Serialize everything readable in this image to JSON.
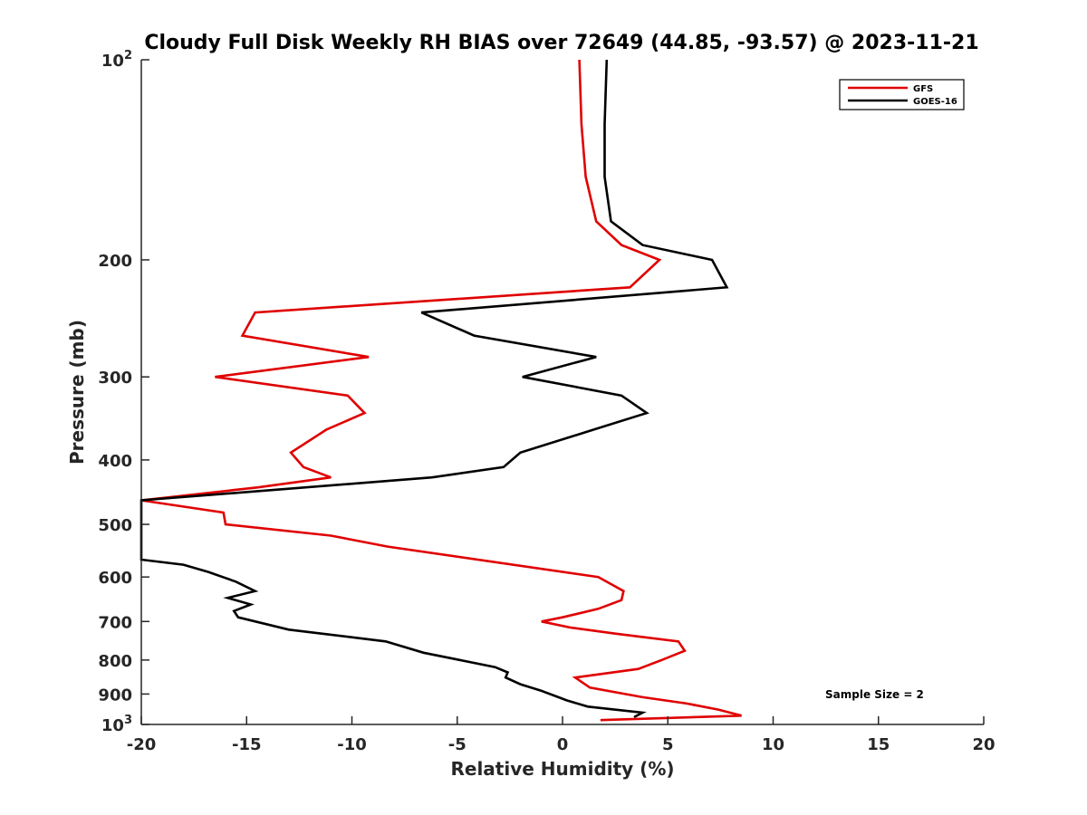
{
  "chart_data": {
    "type": "line",
    "title": "Cloudy Full Disk Weekly RH BIAS over 72649 (44.85, -93.57) @ 2023-11-21",
    "xlabel": "Relative Humidity (%)",
    "ylabel": "Pressure (mb)",
    "xlim": [
      -20,
      20
    ],
    "ylim": [
      100,
      1000
    ],
    "y_scale": "log",
    "y_reversed": true,
    "grid": false,
    "legend_position": "top-right",
    "x_ticks": [
      -20,
      -15,
      -10,
      -5,
      0,
      5,
      10,
      15,
      20
    ],
    "x_tick_labels": [
      "-20",
      "-15",
      "-10",
      "-5",
      "0",
      "5",
      "10",
      "15",
      "20"
    ],
    "y_ticks": [
      100,
      200,
      300,
      400,
      500,
      600,
      700,
      800,
      900,
      1000
    ],
    "y_tick_labels": [
      {
        "base": "10",
        "exp": "2"
      },
      {
        "base": "200",
        "exp": ""
      },
      {
        "base": "300",
        "exp": ""
      },
      {
        "base": "400",
        "exp": ""
      },
      {
        "base": "500",
        "exp": ""
      },
      {
        "base": "600",
        "exp": ""
      },
      {
        "base": "700",
        "exp": ""
      },
      {
        "base": "800",
        "exp": ""
      },
      {
        "base": "900",
        "exp": ""
      },
      {
        "base": "10",
        "exp": "3"
      }
    ],
    "annotation": "Sample Size = 2",
    "series": [
      {
        "name": "GFS",
        "color": "#e00000",
        "points": [
          [
            0.8,
            100
          ],
          [
            0.9,
            125
          ],
          [
            1.1,
            150
          ],
          [
            1.6,
            175
          ],
          [
            2.8,
            190
          ],
          [
            4.6,
            200
          ],
          [
            3.2,
            220
          ],
          [
            -14.6,
            240
          ],
          [
            -15.2,
            260
          ],
          [
            -9.2,
            280
          ],
          [
            -16.5,
            300
          ],
          [
            -10.2,
            320
          ],
          [
            -9.4,
            340
          ],
          [
            -11.2,
            360
          ],
          [
            -12.9,
            390
          ],
          [
            -12.3,
            410
          ],
          [
            -11.0,
            425
          ],
          [
            -14.5,
            440
          ],
          [
            -20.0,
            460
          ],
          [
            -16.1,
            480
          ],
          [
            -16.0,
            500
          ],
          [
            -11.0,
            520
          ],
          [
            -8.3,
            540
          ],
          [
            1.7,
            600
          ],
          [
            2.3,
            615
          ],
          [
            2.9,
            630
          ],
          [
            2.8,
            650
          ],
          [
            1.7,
            670
          ],
          [
            0.0,
            690
          ],
          [
            -1.0,
            700
          ],
          [
            0.4,
            715
          ],
          [
            2.5,
            730
          ],
          [
            5.5,
            750
          ],
          [
            5.8,
            775
          ],
          [
            4.7,
            800
          ],
          [
            3.6,
            825
          ],
          [
            0.6,
            850
          ],
          [
            1.3,
            880
          ],
          [
            3.8,
            910
          ],
          [
            5.9,
            930
          ],
          [
            7.4,
            950
          ],
          [
            8.5,
            970
          ],
          [
            1.8,
            985
          ]
        ]
      },
      {
        "name": "GOES-16",
        "color": "#000000",
        "points": [
          [
            2.1,
            100
          ],
          [
            2.0,
            125
          ],
          [
            2.0,
            150
          ],
          [
            2.3,
            175
          ],
          [
            3.8,
            190
          ],
          [
            7.1,
            200
          ],
          [
            7.8,
            220
          ],
          [
            -6.7,
            240
          ],
          [
            -4.2,
            260
          ],
          [
            1.6,
            280
          ],
          [
            -1.9,
            300
          ],
          [
            2.8,
            320
          ],
          [
            4.0,
            340
          ],
          [
            1.5,
            360
          ],
          [
            -2.0,
            390
          ],
          [
            -2.8,
            410
          ],
          [
            -6.2,
            425
          ],
          [
            -20.0,
            460
          ],
          [
            -20.0,
            565
          ],
          [
            -18.0,
            575
          ],
          [
            -16.8,
            590
          ],
          [
            -15.5,
            610
          ],
          [
            -14.6,
            630
          ],
          [
            -15.9,
            645
          ],
          [
            -14.8,
            660
          ],
          [
            -15.6,
            675
          ],
          [
            -15.4,
            690
          ],
          [
            -13.0,
            720
          ],
          [
            -8.4,
            750
          ],
          [
            -6.6,
            780
          ],
          [
            -3.2,
            820
          ],
          [
            -2.6,
            835
          ],
          [
            -2.7,
            850
          ],
          [
            -2.0,
            870
          ],
          [
            -1.0,
            890
          ],
          [
            -0.2,
            910
          ],
          [
            0.2,
            920
          ],
          [
            1.2,
            940
          ],
          [
            3.8,
            960
          ],
          [
            3.4,
            975
          ]
        ]
      }
    ]
  }
}
